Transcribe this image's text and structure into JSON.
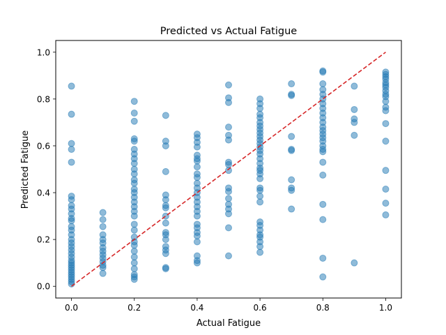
{
  "chart_data": {
    "type": "scatter",
    "title": "Predicted vs Actual Fatigue",
    "xlabel": "Actual Fatigue",
    "ylabel": "Predicted Fatigue",
    "xlim": [
      -0.05,
      1.05
    ],
    "ylim": [
      -0.05,
      1.05
    ],
    "xticks": [
      0.0,
      0.2,
      0.4,
      0.6,
      0.8,
      1.0
    ],
    "yticks": [
      0.0,
      0.2,
      0.4,
      0.6,
      0.8,
      1.0
    ],
    "tick_labels_x": [
      "0.0",
      "0.2",
      "0.4",
      "0.6",
      "0.8",
      "1.0"
    ],
    "tick_labels_y": [
      "0.0",
      "0.2",
      "0.4",
      "0.6",
      "0.8",
      "1.0"
    ],
    "grid": false,
    "point_color": "#1f77b4",
    "point_alpha": 0.5,
    "reference_line": {
      "from": [
        0.0,
        0.0
      ],
      "to": [
        1.0,
        1.0
      ],
      "color": "#d62728",
      "style": "dashed"
    },
    "points": [
      {
        "x": 0.0,
        "y": [
          0.855,
          0.735,
          0.61,
          0.585,
          0.53,
          0.385,
          0.37,
          0.345,
          0.33,
          0.31,
          0.29,
          0.28,
          0.255,
          0.24,
          0.22,
          0.2,
          0.185,
          0.17,
          0.155,
          0.14,
          0.125,
          0.11,
          0.1,
          0.09,
          0.08,
          0.07,
          0.06,
          0.05,
          0.04,
          0.03,
          0.02,
          0.01
        ]
      },
      {
        "x": 0.1,
        "y": [
          0.315,
          0.285,
          0.255,
          0.22,
          0.2,
          0.185,
          0.165,
          0.15,
          0.135,
          0.12,
          0.105,
          0.09,
          0.08,
          0.055
        ]
      },
      {
        "x": 0.2,
        "y": [
          0.79,
          0.74,
          0.705,
          0.63,
          0.62,
          0.585,
          0.565,
          0.545,
          0.525,
          0.5,
          0.48,
          0.455,
          0.44,
          0.415,
          0.4,
          0.38,
          0.36,
          0.34,
          0.32,
          0.3,
          0.265,
          0.24,
          0.21,
          0.19,
          0.175,
          0.15,
          0.125,
          0.1,
          0.075,
          0.05,
          0.04,
          0.03
        ]
      },
      {
        "x": 0.3,
        "y": [
          0.73,
          0.62,
          0.6,
          0.49,
          0.39,
          0.37,
          0.345,
          0.335,
          0.3,
          0.27,
          0.23,
          0.22,
          0.2,
          0.17,
          0.155,
          0.14,
          0.08,
          0.075
        ]
      },
      {
        "x": 0.4,
        "y": [
          0.65,
          0.635,
          0.615,
          0.595,
          0.56,
          0.545,
          0.535,
          0.51,
          0.48,
          0.465,
          0.44,
          0.42,
          0.4,
          0.38,
          0.36,
          0.34,
          0.32,
          0.3,
          0.265,
          0.25,
          0.23,
          0.215,
          0.19,
          0.13,
          0.11,
          0.1
        ]
      },
      {
        "x": 0.5,
        "y": [
          0.86,
          0.805,
          0.785,
          0.68,
          0.645,
          0.625,
          0.53,
          0.52,
          0.495,
          0.42,
          0.405,
          0.375,
          0.35,
          0.33,
          0.31,
          0.25,
          0.13
        ]
      },
      {
        "x": 0.6,
        "y": [
          0.8,
          0.78,
          0.76,
          0.735,
          0.72,
          0.7,
          0.685,
          0.67,
          0.655,
          0.64,
          0.625,
          0.61,
          0.595,
          0.58,
          0.565,
          0.545,
          0.525,
          0.505,
          0.495,
          0.48,
          0.46,
          0.42,
          0.41,
          0.385,
          0.36,
          0.275,
          0.26,
          0.24,
          0.22,
          0.21,
          0.19,
          0.17,
          0.145
        ]
      },
      {
        "x": 0.7,
        "y": [
          0.865,
          0.82,
          0.815,
          0.64,
          0.585,
          0.58,
          0.455,
          0.42,
          0.41,
          0.33
        ]
      },
      {
        "x": 0.8,
        "y": [
          0.92,
          0.915,
          0.865,
          0.84,
          0.82,
          0.8,
          0.78,
          0.76,
          0.74,
          0.72,
          0.7,
          0.68,
          0.665,
          0.65,
          0.635,
          0.62,
          0.6,
          0.585,
          0.575,
          0.53,
          0.475,
          0.35,
          0.285,
          0.12,
          0.04
        ]
      },
      {
        "x": 0.9,
        "y": [
          0.855,
          0.755,
          0.715,
          0.7,
          0.645,
          0.1
        ]
      },
      {
        "x": 1.0,
        "y": [
          0.915,
          0.905,
          0.895,
          0.885,
          0.87,
          0.86,
          0.85,
          0.835,
          0.82,
          0.81,
          0.79,
          0.765,
          0.75,
          0.695,
          0.62,
          0.495,
          0.415,
          0.355,
          0.305
        ]
      }
    ]
  }
}
